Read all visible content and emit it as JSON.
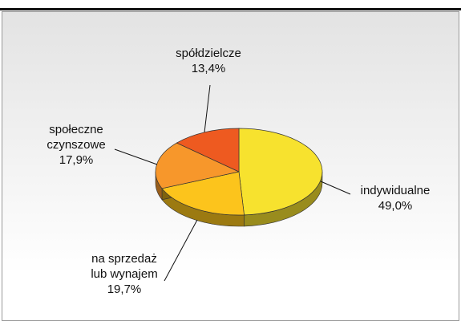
{
  "chart_data": {
    "type": "pie",
    "categories": [
      "indywidualne",
      "na sprzedaż\nlub wynajem",
      "społeczne\nczynszowe",
      "spółdzielcze"
    ],
    "values": [
      49.0,
      19.7,
      17.9,
      13.4
    ],
    "value_labels": [
      "49,0%",
      "19,7%",
      "17,9%",
      "13,4%"
    ],
    "colors": [
      "#f7e22e",
      "#fcc41c",
      "#f7972b",
      "#ee5a20"
    ]
  }
}
